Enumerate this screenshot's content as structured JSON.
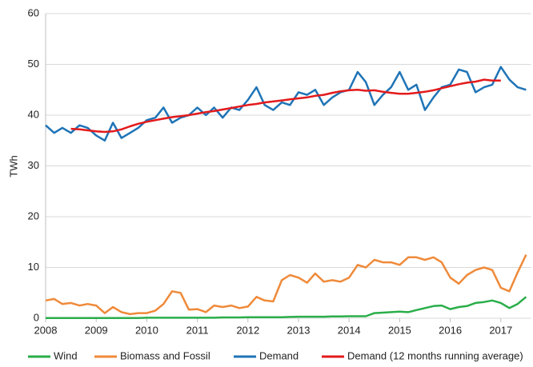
{
  "chart_data": {
    "type": "line",
    "y_label": "TWh",
    "x": [
      2008.0,
      2008.17,
      2008.33,
      2008.5,
      2008.67,
      2008.83,
      2009.0,
      2009.17,
      2009.33,
      2009.5,
      2009.67,
      2009.83,
      2010.0,
      2010.17,
      2010.33,
      2010.5,
      2010.67,
      2010.83,
      2011.0,
      2011.17,
      2011.33,
      2011.5,
      2011.67,
      2011.83,
      2012.0,
      2012.17,
      2012.33,
      2012.5,
      2012.67,
      2012.83,
      2013.0,
      2013.17,
      2013.33,
      2013.5,
      2013.67,
      2013.83,
      2014.0,
      2014.17,
      2014.33,
      2014.5,
      2014.67,
      2014.83,
      2015.0,
      2015.17,
      2015.33,
      2015.5,
      2015.67,
      2015.83,
      2016.0,
      2016.17,
      2016.33,
      2016.5,
      2016.67,
      2016.83,
      2017.0,
      2017.17,
      2017.33,
      2017.5
    ],
    "series": [
      {
        "name": "Wind",
        "color": "#2aae4a",
        "values": [
          0.05,
          0.05,
          0.05,
          0.05,
          0.05,
          0.05,
          0.05,
          0.05,
          0.05,
          0.05,
          0.05,
          0.05,
          0.1,
          0.1,
          0.1,
          0.1,
          0.1,
          0.1,
          0.1,
          0.1,
          0.1,
          0.15,
          0.15,
          0.15,
          0.2,
          0.2,
          0.2,
          0.2,
          0.2,
          0.25,
          0.3,
          0.3,
          0.3,
          0.3,
          0.35,
          0.35,
          0.4,
          0.4,
          0.4,
          1,
          1.1,
          1.2,
          1.3,
          1.2,
          1.6,
          2,
          2.4,
          2.5,
          1.8,
          2.2,
          2.4,
          3,
          3.2,
          3.5,
          3,
          2,
          2.8,
          4.2
        ]
      },
      {
        "name": "Biomass and Fossil",
        "color": "#ef8a3a",
        "values": [
          3.5,
          3.8,
          2.8,
          3,
          2.5,
          2.8,
          2.5,
          1,
          2.2,
          1.2,
          0.8,
          1,
          1,
          1.5,
          2.8,
          5.3,
          5,
          1.7,
          1.8,
          1.2,
          2.5,
          2.2,
          2.5,
          2,
          2.3,
          4.2,
          3.5,
          3.3,
          7.5,
          8.5,
          8,
          7,
          8.8,
          7.2,
          7.5,
          7.2,
          8,
          10.5,
          10,
          11.5,
          11,
          11,
          10.5,
          12,
          12,
          11.5,
          12,
          11,
          8,
          6.8,
          8.5,
          9.5,
          10,
          9.5,
          6,
          5.3,
          9,
          12.5
        ]
      },
      {
        "name": "Demand",
        "color": "#1f74b7",
        "values": [
          38,
          36.5,
          37.5,
          36.5,
          38,
          37.5,
          36,
          35,
          38.5,
          35.5,
          36.5,
          37.5,
          39,
          39.5,
          41.5,
          38.5,
          39.5,
          40,
          41.5,
          40,
          41.5,
          39.5,
          41.5,
          41,
          43,
          45.5,
          42,
          41,
          42.5,
          42,
          44.5,
          44,
          45,
          42,
          43.5,
          44.5,
          45,
          48.5,
          46.5,
          42,
          44,
          45.5,
          48.5,
          45,
          46,
          41,
          43.5,
          45.5,
          46,
          49,
          48.5,
          44.5,
          45.5,
          46,
          49.5,
          47,
          45.5,
          45
        ]
      },
      {
        "name": "Demand (12 months running average)",
        "color": "#e31a1c",
        "values": [
          null,
          null,
          null,
          37.3,
          37.2,
          37,
          36.8,
          36.7,
          36.8,
          37.2,
          37.8,
          38.3,
          38.7,
          39,
          39.3,
          39.6,
          39.8,
          40,
          40.3,
          40.6,
          40.8,
          41.1,
          41.4,
          41.7,
          42,
          42.2,
          42.5,
          42.7,
          42.9,
          43.1,
          43.3,
          43.5,
          43.8,
          44,
          44.4,
          44.7,
          44.9,
          45,
          44.8,
          44.9,
          44.6,
          44.4,
          44.2,
          44.2,
          44.4,
          44.6,
          44.9,
          45.3,
          45.7,
          46.1,
          46.4,
          46.6,
          47,
          46.8,
          46.8,
          null,
          null,
          null
        ]
      }
    ],
    "xlim": [
      2008,
      2017.6
    ],
    "xticks": [
      2008,
      2009,
      2010,
      2011,
      2012,
      2013,
      2014,
      2015,
      2016,
      2017
    ],
    "ylim": [
      0,
      60
    ],
    "yticks": [
      0,
      10,
      20,
      30,
      40,
      50,
      60
    ],
    "grid": true
  }
}
